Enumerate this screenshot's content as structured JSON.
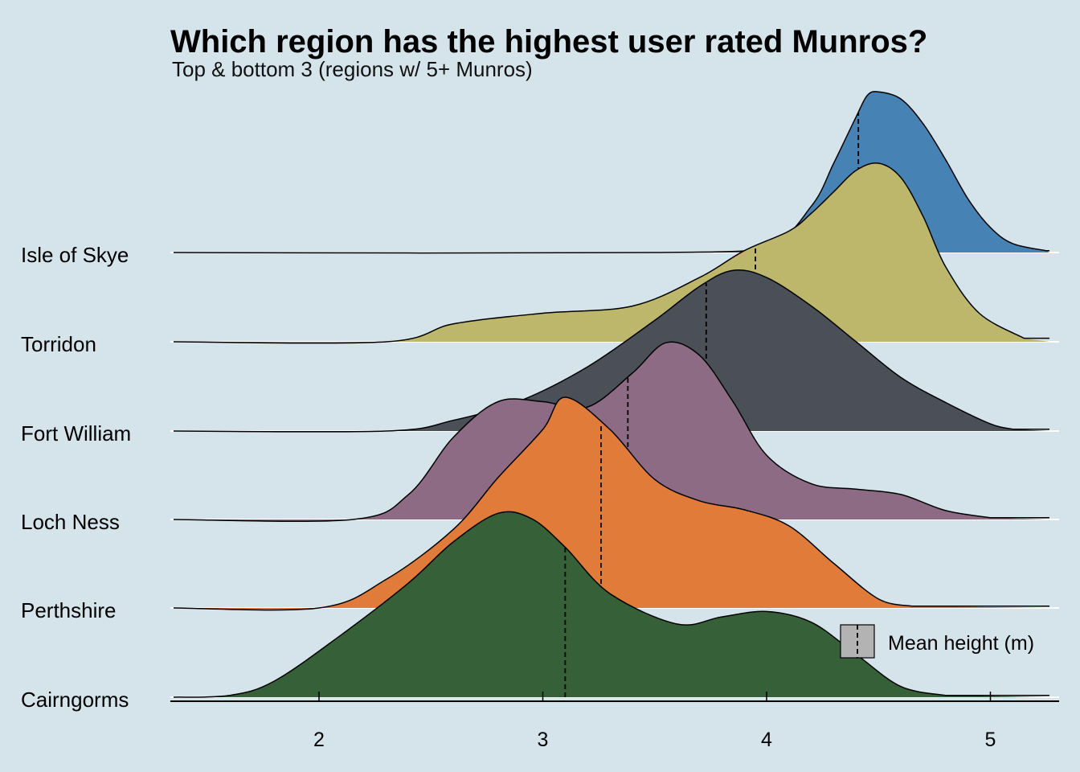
{
  "chart_data": {
    "type": "ridgeline",
    "title": "Which region has the highest user rated Munros?",
    "subtitle": "Top & bottom 3 (regions w/ 5+ Munros)",
    "xlim": [
      1.35,
      5.3
    ],
    "x_ticks": [
      2,
      3,
      4,
      5
    ],
    "grid": false,
    "legend": {
      "label": "Mean height (m)",
      "position": "bottom-right"
    },
    "series": [
      {
        "name": "Isle of Skye",
        "color": "#4682b4",
        "mean": 4.41,
        "density_x": [
          1.35,
          3.5,
          4.0,
          4.2,
          4.3,
          4.4,
          4.45,
          4.5,
          4.6,
          4.7,
          4.8,
          4.9,
          5.0,
          5.1,
          5.25
        ],
        "density_y": [
          0,
          0,
          0.04,
          0.26,
          0.5,
          0.76,
          0.88,
          0.9,
          0.86,
          0.72,
          0.52,
          0.3,
          0.14,
          0.05,
          0.01
        ]
      },
      {
        "name": "Torridon",
        "color": "#bdb76b",
        "mean": 3.95,
        "density_x": [
          1.35,
          2.3,
          2.6,
          3.0,
          3.4,
          3.7,
          3.9,
          4.1,
          4.2,
          4.3,
          4.4,
          4.5,
          4.6,
          4.7,
          4.8,
          4.95,
          5.15
        ],
        "density_y": [
          0,
          0,
          0.1,
          0.16,
          0.2,
          0.36,
          0.51,
          0.62,
          0.72,
          0.84,
          0.96,
          1.0,
          0.92,
          0.7,
          0.42,
          0.16,
          0.02
        ]
      },
      {
        "name": "Fort William",
        "color": "#4a4f58",
        "mean": 3.73,
        "density_x": [
          1.35,
          2.3,
          2.6,
          2.9,
          3.2,
          3.5,
          3.7,
          3.85,
          4.0,
          4.2,
          4.4,
          4.6,
          4.8,
          5.0,
          5.1
        ],
        "density_y": [
          0,
          0,
          0.06,
          0.17,
          0.36,
          0.62,
          0.81,
          0.9,
          0.86,
          0.7,
          0.5,
          0.3,
          0.16,
          0.04,
          0.01
        ]
      },
      {
        "name": "Loch Ness",
        "color": "#8e6b84",
        "mean": 3.38,
        "density_x": [
          1.35,
          2.15,
          2.4,
          2.6,
          2.8,
          3.0,
          3.2,
          3.4,
          3.55,
          3.7,
          3.85,
          4.0,
          4.2,
          4.4,
          4.6,
          4.8,
          5.0
        ],
        "density_y": [
          0,
          0,
          0.14,
          0.46,
          0.66,
          0.66,
          0.63,
          0.82,
          0.99,
          0.92,
          0.66,
          0.36,
          0.2,
          0.17,
          0.14,
          0.05,
          0.01
        ]
      },
      {
        "name": "Perthshire",
        "color": "#e07b39",
        "mean": 3.26,
        "density_x": [
          1.35,
          2.0,
          2.3,
          2.6,
          2.8,
          3.0,
          3.1,
          3.3,
          3.5,
          3.7,
          3.9,
          4.1,
          4.3,
          4.5,
          4.65
        ],
        "density_y": [
          0,
          0,
          0.16,
          0.44,
          0.73,
          1.0,
          1.18,
          1.0,
          0.72,
          0.6,
          0.55,
          0.46,
          0.25,
          0.05,
          0.01
        ]
      },
      {
        "name": "Cairngorms",
        "color": "#356038",
        "mean": 3.1,
        "density_x": [
          1.35,
          1.6,
          1.8,
          2.1,
          2.4,
          2.6,
          2.8,
          2.95,
          3.1,
          3.3,
          3.6,
          3.8,
          4.0,
          4.2,
          4.4,
          4.6,
          4.8
        ],
        "density_y": [
          0,
          0.01,
          0.09,
          0.35,
          0.64,
          0.87,
          1.03,
          1.0,
          0.84,
          0.58,
          0.41,
          0.45,
          0.48,
          0.42,
          0.24,
          0.06,
          0.01
        ]
      }
    ]
  }
}
